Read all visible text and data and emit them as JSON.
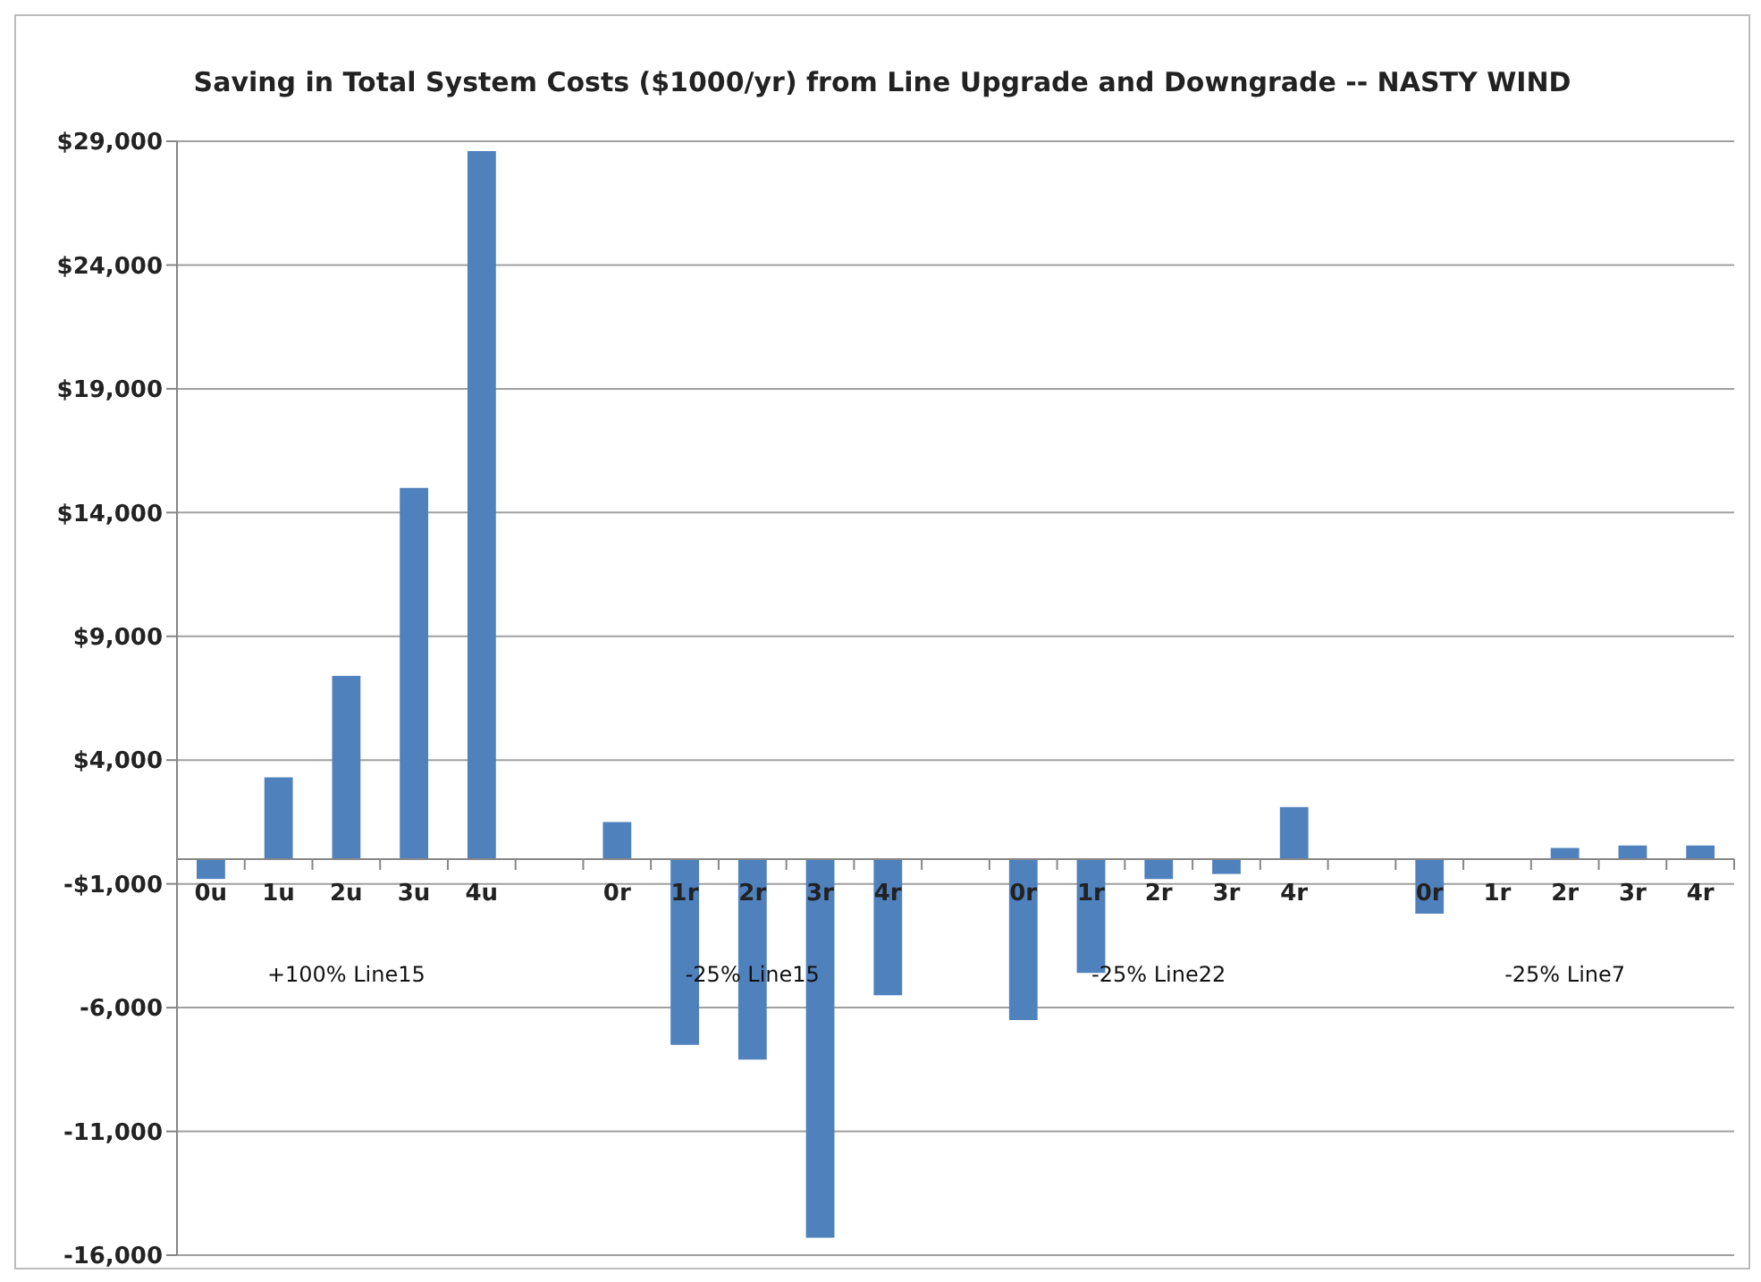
{
  "chart_data": {
    "type": "bar",
    "title": "Saving in Total System Costs ($1000/yr) from Line Upgrade and Downgrade -- NASTY WIND",
    "categories": [
      "0u",
      "1u",
      "2u",
      "3u",
      "4u",
      null,
      "0r",
      "1r",
      "2r",
      "3r",
      "4r",
      null,
      "0r",
      "1r",
      "2r",
      "3r",
      "4r",
      null,
      "0r",
      "1r",
      "2r",
      "3r",
      "4r"
    ],
    "values": [
      -800,
      3300,
      7400,
      15000,
      28600,
      null,
      1500,
      -7500,
      -8100,
      -15300,
      -5500,
      null,
      -6500,
      -4600,
      -800,
      -600,
      2100,
      null,
      -2200,
      0,
      450,
      550,
      550
    ],
    "color": "#4f81bd",
    "ylim": [
      -16000,
      29000
    ],
    "yticks": [
      {
        "value": -16000,
        "label": "-16,000"
      },
      {
        "value": -11000,
        "label": "-11,000"
      },
      {
        "value": -6000,
        "label": "-6,000"
      },
      {
        "value": -1000,
        "label": "-$1,000"
      },
      {
        "value": 4000,
        "label": "$4,000"
      },
      {
        "value": 9000,
        "label": "$9,000"
      },
      {
        "value": 14000,
        "label": "$14,000"
      },
      {
        "value": 19000,
        "label": "$19,000"
      },
      {
        "value": 24000,
        "label": "$24,000"
      },
      {
        "value": 29000,
        "label": "$29,000"
      }
    ],
    "grid": "y",
    "annotations": [
      "+100% Line15",
      "-25% Line15",
      "-25% Line22",
      "-25% Line7"
    ]
  }
}
